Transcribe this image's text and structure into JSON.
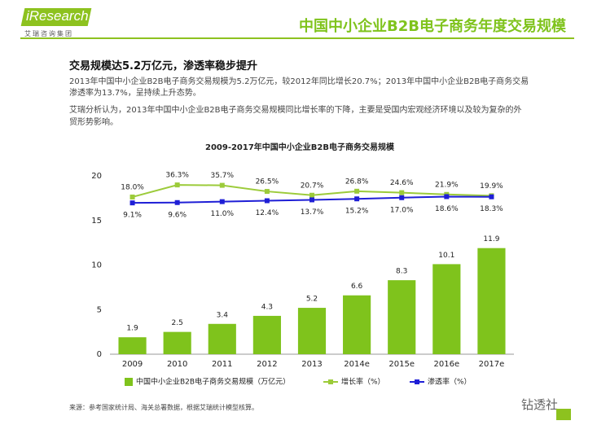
{
  "logo": {
    "brand": "iResearch",
    "subtitle": "艾瑞咨询集团"
  },
  "header": {
    "title": "中国中小企业B2B电子商务年度交易规模"
  },
  "heading": "交易规模达5.2万亿元，渗透率稳步提升",
  "paragraphs": [
    "2013年中国中小企业B2B电子商务交易规模为5.2万亿元，较2012年同比增长20.7%；2013年中国中小企业B2B电子商务交易渗透率为13.7%，呈持续上升态势。",
    "艾瑞分析认为，2013年中国中小企业B2B电子商务交易规模同比增长率的下降，主要是受国内宏观经济环境以及较为复杂的外贸形势影响。"
  ],
  "source": "来源：参考国家统计局、海关总署数据，根据艾瑞统计模型核算。",
  "watermark": "钻透社",
  "chart_data": {
    "type": "bar",
    "title": "2009-2017年中国中小企业B2B电子商务交易规模",
    "categories": [
      "2009",
      "2010",
      "2011",
      "2012",
      "2013",
      "2014e",
      "2015e",
      "2016e",
      "2017e"
    ],
    "ylim": [
      0,
      20
    ],
    "yticks": [
      0,
      5,
      10,
      15,
      20
    ],
    "y2lim": [
      -220,
      50
    ],
    "grid": false,
    "legend": "bottom",
    "series": [
      {
        "name": "中国中小企业B2B电子商务交易规模（万亿元）",
        "type": "bar",
        "color": "#7fc31c",
        "values": [
          1.9,
          2.5,
          3.4,
          4.3,
          5.2,
          6.6,
          8.3,
          10.1,
          11.9
        ]
      },
      {
        "name": "增长率（%）",
        "type": "line",
        "axis": "y2",
        "color": "#9ccb3a",
        "values": [
          18.0,
          36.3,
          35.7,
          26.5,
          20.7,
          26.8,
          24.6,
          21.9,
          19.9
        ],
        "value_labels": [
          "18.0%",
          "36.3%",
          "35.7%",
          "26.5%",
          "20.7%",
          "26.8%",
          "24.6%",
          "21.9%",
          "19.9%"
        ]
      },
      {
        "name": "渗透率（%）",
        "type": "line",
        "axis": "y2",
        "color": "#1f1fd6",
        "values": [
          9.1,
          9.6,
          11.0,
          12.4,
          13.7,
          15.2,
          17.0,
          18.6,
          18.3
        ],
        "value_labels": [
          "9.1%",
          "9.6%",
          "11.0%",
          "12.4%",
          "13.7%",
          "15.2%",
          "17.0%",
          "18.6%",
          "18.3%"
        ]
      }
    ]
  }
}
